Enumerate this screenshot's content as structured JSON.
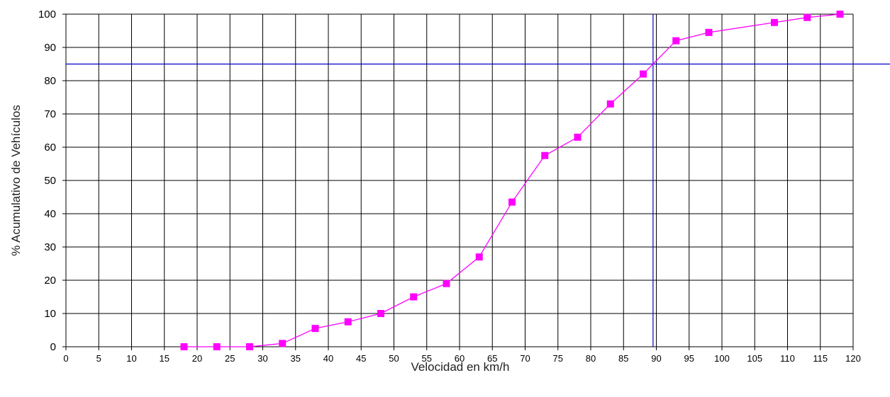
{
  "chart_data": {
    "type": "line",
    "title": "",
    "xlabel": "Velocidad en km/h",
    "ylabel": "% Acumulativo de Vehículos",
    "xlim": [
      0,
      120
    ],
    "ylim": [
      0,
      100
    ],
    "x_ticks": [
      0,
      5,
      10,
      15,
      20,
      25,
      30,
      35,
      40,
      45,
      50,
      55,
      60,
      65,
      70,
      75,
      80,
      85,
      90,
      95,
      100,
      105,
      110,
      115,
      120
    ],
    "y_ticks": [
      0,
      10,
      20,
      30,
      40,
      50,
      60,
      70,
      80,
      90,
      100
    ],
    "grid": true,
    "series": [
      {
        "color": "#ff00ff",
        "marker": "square",
        "x": [
          18,
          23,
          28,
          33,
          38,
          43,
          48,
          53,
          58,
          63,
          68,
          73,
          78,
          83,
          88,
          93,
          98,
          108,
          113,
          118
        ],
        "y": [
          0,
          0,
          0,
          1,
          5.5,
          7.5,
          10,
          15,
          19,
          27,
          43.5,
          57.5,
          63,
          73,
          82,
          92,
          94.5,
          97.5,
          99,
          100
        ]
      }
    ],
    "reference_lines": [
      {
        "orientation": "horizontal",
        "value": 85,
        "color": "#0000cc"
      },
      {
        "orientation": "vertical",
        "value": 89.5,
        "color": "#0000cc"
      }
    ]
  }
}
